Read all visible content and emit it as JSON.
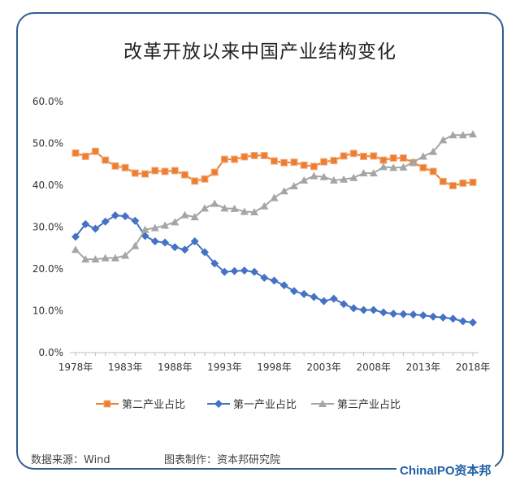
{
  "chart_data": {
    "type": "line",
    "title": "改革开放以来中国产业结构变化",
    "x": [
      1978,
      1979,
      1980,
      1981,
      1982,
      1983,
      1984,
      1985,
      1986,
      1987,
      1988,
      1989,
      1990,
      1991,
      1992,
      1993,
      1994,
      1995,
      1996,
      1997,
      1998,
      1999,
      2000,
      2001,
      2002,
      2003,
      2004,
      2005,
      2006,
      2007,
      2008,
      2009,
      2010,
      2011,
      2012,
      2013,
      2014,
      2015,
      2016,
      2017,
      2018
    ],
    "x_tick_labels": [
      "1978年",
      "1983年",
      "1988年",
      "1993年",
      "1998年",
      "2003年",
      "2008年",
      "2013年",
      "2018年"
    ],
    "y_tick_labels": [
      "0.0%",
      "10.0%",
      "20.0%",
      "30.0%",
      "40.0%",
      "50.0%",
      "60.0%"
    ],
    "ylim": [
      0,
      60
    ],
    "grid": false,
    "legend_placement": "bottom",
    "series": [
      {
        "name": "第二产业占比",
        "color": "#ed7d31",
        "marker": "square",
        "values": [
          47.7,
          46.9,
          48.1,
          46.0,
          44.6,
          44.2,
          42.9,
          42.7,
          43.5,
          43.3,
          43.5,
          42.5,
          41.0,
          41.5,
          43.1,
          46.2,
          46.2,
          46.8,
          47.1,
          47.1,
          45.8,
          45.4,
          45.5,
          44.8,
          44.5,
          45.6,
          45.9,
          47.0,
          47.6,
          46.9,
          47.0,
          46.0,
          46.5,
          46.5,
          45.4,
          44.2,
          43.3,
          40.9,
          39.9,
          40.5,
          40.7
        ]
      },
      {
        "name": "第一产业占比",
        "color": "#4472c4",
        "marker": "diamond",
        "values": [
          27.7,
          30.7,
          29.6,
          31.3,
          32.8,
          32.6,
          31.5,
          27.9,
          26.6,
          26.3,
          25.2,
          24.6,
          26.6,
          24.0,
          21.3,
          19.3,
          19.5,
          19.6,
          19.3,
          17.9,
          17.2,
          16.1,
          14.7,
          14.0,
          13.3,
          12.3,
          12.9,
          11.6,
          10.6,
          10.2,
          10.2,
          9.6,
          9.3,
          9.2,
          9.1,
          8.9,
          8.6,
          8.4,
          8.1,
          7.5,
          7.2
        ]
      },
      {
        "name": "第三产业占比",
        "color": "#a5a5a5",
        "marker": "triangle",
        "values": [
          24.6,
          22.3,
          22.3,
          22.6,
          22.6,
          23.2,
          25.5,
          29.4,
          29.8,
          30.4,
          31.2,
          32.9,
          32.4,
          34.5,
          35.6,
          34.5,
          34.4,
          33.7,
          33.6,
          35.0,
          37.0,
          38.6,
          39.8,
          41.2,
          42.2,
          42.0,
          41.2,
          41.4,
          41.8,
          42.9,
          42.9,
          44.4,
          44.2,
          44.3,
          45.5,
          46.9,
          48.0,
          50.8,
          52.0,
          52.0,
          52.2
        ]
      }
    ]
  },
  "footer": {
    "source": "数据来源：Wind",
    "maker": "图表制作：资本邦研究院",
    "logo": "ChinaIPO资本邦"
  }
}
